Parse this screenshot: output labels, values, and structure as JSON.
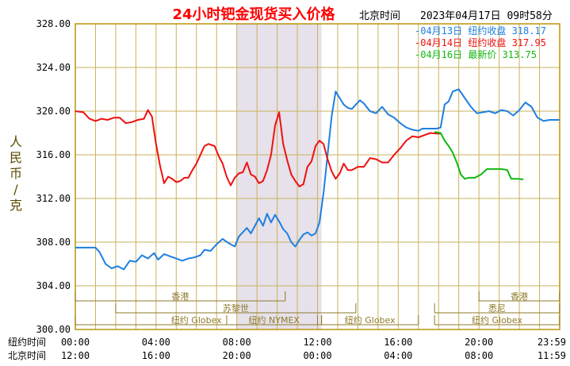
{
  "header": {
    "title": "24小时钯金现货买入价格",
    "timezone_label": "北京时间",
    "timestamp": "2023年04月17日 09时58分"
  },
  "legend": [
    {
      "label": "04月13日",
      "kind": "纽约收盘",
      "value": "318.17",
      "color": "#1e7fe0"
    },
    {
      "label": "04月14日",
      "kind": "纽约收盘",
      "value": "317.95",
      "color": "#ee1111"
    },
    {
      "label": "04月16日",
      "kind": "最新价",
      "value": "313.75",
      "color": "#11b811"
    }
  ],
  "axis": {
    "ylabel": "人民币/克",
    "row1_label": "纽约时间",
    "row2_label": "北京时间",
    "ny_ticks": [
      "00:00",
      "04:00",
      "08:00",
      "12:00",
      "16:00",
      "20:00",
      "23:59"
    ],
    "bj_ticks": [
      "12:00",
      "16:00",
      "20:00",
      "00:00",
      "04:00",
      "08:00",
      "11:59"
    ]
  },
  "sessions": [
    {
      "label": "香港",
      "row": 1,
      "start": 0,
      "end": 10.4
    },
    {
      "label": "苏黎世",
      "row": 2,
      "start": 2.0,
      "end": 13.9
    },
    {
      "label": "纽约 Globex",
      "row": 3,
      "start": 0,
      "end": 12.0
    },
    {
      "label": "纽约 NYMEX",
      "row": 3,
      "start": 7.5,
      "end": 12.2
    },
    {
      "label": "纽约 Globex",
      "row": 3,
      "start": 12.2,
      "end": 17.0
    },
    {
      "label": "悉尼",
      "row": 2,
      "start": 17.8,
      "end": 23.99
    },
    {
      "label": "香港",
      "row": 1,
      "start": 20.0,
      "end": 23.99
    },
    {
      "label": "纽约 Globex",
      "row": 3,
      "start": 17.8,
      "end": 23.99
    }
  ],
  "colors": {
    "plot_border": "#b8960c",
    "grid": "#c9b25a",
    "shade": "#e6e1ea",
    "tick_text": "#000000",
    "title": "#ff0000",
    "ylabel": "#5a4a00"
  },
  "chart_data": {
    "type": "line",
    "x_unit": "hours since 00:00 New York time",
    "ylim": [
      300,
      328
    ],
    "yticks": [
      "328.00",
      "324.00",
      "320.00",
      "316.00",
      "312.00",
      "308.00",
      "304.00",
      "300.00"
    ],
    "xlim": [
      0,
      24
    ],
    "shaded_region": [
      8,
      12.2
    ],
    "series": [
      {
        "name": "04月13日",
        "color": "#1e7fe0",
        "points": [
          [
            0,
            307.5
          ],
          [
            1,
            307.5
          ],
          [
            1.2,
            307.1
          ],
          [
            1.5,
            306.0
          ],
          [
            1.8,
            305.6
          ],
          [
            2.1,
            305.8
          ],
          [
            2.4,
            305.5
          ],
          [
            2.7,
            306.3
          ],
          [
            3.0,
            306.2
          ],
          [
            3.3,
            306.8
          ],
          [
            3.6,
            306.5
          ],
          [
            3.9,
            307.0
          ],
          [
            4.1,
            306.4
          ],
          [
            4.4,
            306.9
          ],
          [
            4.7,
            306.7
          ],
          [
            5.0,
            306.5
          ],
          [
            5.3,
            306.3
          ],
          [
            5.6,
            306.5
          ],
          [
            5.9,
            306.6
          ],
          [
            6.2,
            306.8
          ],
          [
            6.4,
            307.3
          ],
          [
            6.7,
            307.2
          ],
          [
            7.0,
            307.8
          ],
          [
            7.3,
            308.3
          ],
          [
            7.6,
            307.9
          ],
          [
            7.9,
            307.6
          ],
          [
            8.1,
            308.5
          ],
          [
            8.3,
            308.9
          ],
          [
            8.5,
            309.3
          ],
          [
            8.7,
            308.8
          ],
          [
            8.9,
            309.5
          ],
          [
            9.1,
            310.2
          ],
          [
            9.3,
            309.5
          ],
          [
            9.5,
            310.6
          ],
          [
            9.7,
            309.8
          ],
          [
            9.9,
            310.5
          ],
          [
            10.1,
            309.9
          ],
          [
            10.3,
            309.2
          ],
          [
            10.5,
            308.8
          ],
          [
            10.7,
            308.0
          ],
          [
            10.9,
            307.6
          ],
          [
            11.1,
            308.2
          ],
          [
            11.3,
            308.7
          ],
          [
            11.5,
            308.9
          ],
          [
            11.7,
            308.6
          ],
          [
            11.9,
            308.8
          ],
          [
            12.1,
            309.8
          ],
          [
            12.3,
            312.5
          ],
          [
            12.5,
            316.0
          ],
          [
            12.7,
            319.5
          ],
          [
            12.9,
            321.8
          ],
          [
            13.1,
            321.2
          ],
          [
            13.3,
            320.6
          ],
          [
            13.5,
            320.3
          ],
          [
            13.7,
            320.2
          ],
          [
            13.9,
            320.6
          ],
          [
            14.1,
            321.0
          ],
          [
            14.3,
            320.7
          ],
          [
            14.6,
            320.0
          ],
          [
            14.9,
            319.8
          ],
          [
            15.2,
            320.4
          ],
          [
            15.5,
            319.7
          ],
          [
            15.8,
            319.4
          ],
          [
            16.1,
            318.9
          ],
          [
            16.4,
            318.5
          ],
          [
            16.7,
            318.3
          ],
          [
            17.0,
            318.2
          ],
          [
            17.2,
            318.4
          ],
          [
            17.6,
            318.4
          ],
          [
            17.9,
            318.4
          ],
          [
            18.1,
            318.5
          ],
          [
            18.3,
            320.6
          ],
          [
            18.5,
            320.9
          ],
          [
            18.7,
            321.8
          ],
          [
            19.0,
            322.0
          ],
          [
            19.3,
            321.2
          ],
          [
            19.6,
            320.4
          ],
          [
            19.9,
            319.8
          ],
          [
            20.2,
            319.9
          ],
          [
            20.5,
            320.0
          ],
          [
            20.8,
            319.8
          ],
          [
            21.1,
            320.1
          ],
          [
            21.4,
            320.0
          ],
          [
            21.7,
            319.6
          ],
          [
            22.0,
            320.1
          ],
          [
            22.3,
            320.8
          ],
          [
            22.6,
            320.4
          ],
          [
            22.9,
            319.4
          ],
          [
            23.2,
            319.1
          ],
          [
            23.5,
            319.2
          ],
          [
            23.99,
            319.2
          ]
        ]
      },
      {
        "name": "04月14日",
        "color": "#ee1111",
        "points": [
          [
            0,
            320.0
          ],
          [
            0.4,
            319.9
          ],
          [
            0.7,
            319.3
          ],
          [
            1.0,
            319.1
          ],
          [
            1.3,
            319.3
          ],
          [
            1.6,
            319.2
          ],
          [
            1.9,
            319.4
          ],
          [
            2.2,
            319.4
          ],
          [
            2.5,
            318.9
          ],
          [
            2.8,
            319.0
          ],
          [
            3.1,
            319.2
          ],
          [
            3.4,
            319.3
          ],
          [
            3.6,
            320.1
          ],
          [
            3.8,
            319.5
          ],
          [
            4.0,
            317.0
          ],
          [
            4.2,
            315.0
          ],
          [
            4.4,
            313.4
          ],
          [
            4.6,
            314.0
          ],
          [
            4.8,
            313.8
          ],
          [
            5.0,
            313.5
          ],
          [
            5.2,
            313.6
          ],
          [
            5.4,
            313.9
          ],
          [
            5.6,
            313.9
          ],
          [
            5.8,
            314.6
          ],
          [
            6.0,
            315.2
          ],
          [
            6.2,
            316.0
          ],
          [
            6.4,
            316.8
          ],
          [
            6.6,
            317.0
          ],
          [
            6.9,
            316.8
          ],
          [
            7.1,
            315.9
          ],
          [
            7.3,
            315.2
          ],
          [
            7.5,
            314.0
          ],
          [
            7.7,
            313.2
          ],
          [
            7.9,
            313.9
          ],
          [
            8.1,
            314.3
          ],
          [
            8.3,
            314.4
          ],
          [
            8.5,
            315.3
          ],
          [
            8.7,
            314.2
          ],
          [
            8.9,
            314.0
          ],
          [
            9.1,
            313.4
          ],
          [
            9.3,
            313.6
          ],
          [
            9.5,
            314.6
          ],
          [
            9.7,
            316.0
          ],
          [
            9.9,
            318.7
          ],
          [
            10.1,
            319.9
          ],
          [
            10.3,
            317.0
          ],
          [
            10.5,
            315.5
          ],
          [
            10.7,
            314.2
          ],
          [
            10.9,
            313.6
          ],
          [
            11.1,
            313.1
          ],
          [
            11.3,
            313.3
          ],
          [
            11.5,
            314.9
          ],
          [
            11.7,
            315.4
          ],
          [
            11.9,
            316.8
          ],
          [
            12.1,
            317.3
          ],
          [
            12.3,
            317.0
          ],
          [
            12.5,
            315.6
          ],
          [
            12.7,
            314.5
          ],
          [
            12.9,
            313.8
          ],
          [
            13.1,
            314.3
          ],
          [
            13.3,
            315.2
          ],
          [
            13.5,
            314.6
          ],
          [
            13.7,
            314.6
          ],
          [
            14.0,
            314.9
          ],
          [
            14.3,
            314.9
          ],
          [
            14.6,
            315.7
          ],
          [
            14.9,
            315.6
          ],
          [
            15.2,
            315.3
          ],
          [
            15.5,
            315.3
          ],
          [
            15.8,
            316.0
          ],
          [
            16.1,
            316.6
          ],
          [
            16.4,
            317.3
          ],
          [
            16.7,
            317.7
          ],
          [
            17.0,
            317.6
          ],
          [
            17.3,
            317.8
          ],
          [
            17.6,
            318.0
          ],
          [
            17.9,
            317.95
          ],
          [
            18.1,
            317.95
          ]
        ]
      },
      {
        "name": "04月16日",
        "color": "#11b811",
        "points": [
          [
            17.8,
            318.1
          ],
          [
            18.1,
            318.0
          ],
          [
            18.3,
            317.3
          ],
          [
            18.5,
            316.8
          ],
          [
            18.7,
            316.2
          ],
          [
            18.9,
            315.3
          ],
          [
            19.1,
            314.2
          ],
          [
            19.3,
            313.8
          ],
          [
            19.5,
            313.9
          ],
          [
            19.8,
            313.9
          ],
          [
            20.1,
            314.2
          ],
          [
            20.4,
            314.7
          ],
          [
            20.8,
            314.7
          ],
          [
            21.1,
            314.7
          ],
          [
            21.4,
            314.6
          ],
          [
            21.6,
            313.8
          ],
          [
            21.9,
            313.8
          ],
          [
            22.2,
            313.75
          ]
        ]
      }
    ]
  }
}
